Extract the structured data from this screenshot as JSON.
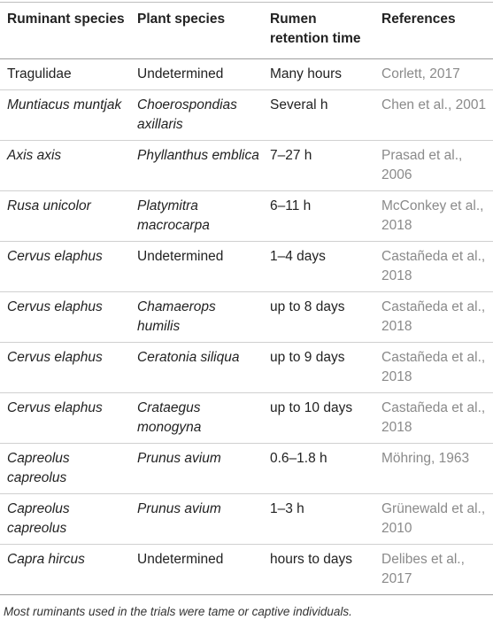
{
  "table": {
    "headers": {
      "ruminant": "Ruminant species",
      "plant": "Plant species",
      "rumen": "Rumen retention time",
      "references": "References"
    },
    "rows": [
      {
        "ruminant": "Tragulidae",
        "ruminant_italic": false,
        "plant": "Undetermined",
        "plant_italic": false,
        "time": "Many hours",
        "ref": "Corlett, 2017"
      },
      {
        "ruminant": "Muntiacus muntjak",
        "ruminant_italic": true,
        "plant": "Choerospondias axillaris",
        "plant_italic": true,
        "time": "Several h",
        "ref": "Chen et al., 2001"
      },
      {
        "ruminant": "Axis axis",
        "ruminant_italic": true,
        "plant": "Phyllanthus emblica",
        "plant_italic": true,
        "time": "7–27 h",
        "ref": "Prasad et al., 2006"
      },
      {
        "ruminant": "Rusa unicolor",
        "ruminant_italic": true,
        "plant": "Platymitra macrocarpa",
        "plant_italic": true,
        "time": "6–11 h",
        "ref": "McConkey et al., 2018"
      },
      {
        "ruminant": "Cervus elaphus",
        "ruminant_italic": true,
        "plant": "Undetermined",
        "plant_italic": false,
        "time": "1–4 days",
        "ref": "Castañeda et al., 2018"
      },
      {
        "ruminant": "Cervus elaphus",
        "ruminant_italic": true,
        "plant": "Chamaerops humilis",
        "plant_italic": true,
        "time": "up to 8 days",
        "ref": "Castañeda et al., 2018"
      },
      {
        "ruminant": "Cervus elaphus",
        "ruminant_italic": true,
        "plant": "Ceratonia siliqua",
        "plant_italic": true,
        "time": "up to 9 days",
        "ref": "Castañeda et al., 2018"
      },
      {
        "ruminant": "Cervus elaphus",
        "ruminant_italic": true,
        "plant": "Crataegus monogyna",
        "plant_italic": true,
        "time": "up to 10 days",
        "ref": "Castañeda et al., 2018"
      },
      {
        "ruminant": "Capreolus capreolus",
        "ruminant_italic": true,
        "plant": "Prunus avium",
        "plant_italic": true,
        "time": "0.6–1.8 h",
        "ref": "Möhring, 1963"
      },
      {
        "ruminant": "Capreolus capreolus",
        "ruminant_italic": true,
        "plant": "Prunus avium",
        "plant_italic": true,
        "time": "1–3 h",
        "ref": "Grünewald et al., 2010"
      },
      {
        "ruminant": "Capra hircus",
        "ruminant_italic": true,
        "plant": "Undetermined",
        "plant_italic": false,
        "time": "hours to days",
        "ref": "Delibes et al., 2017"
      }
    ]
  },
  "footnote": "Most ruminants used in the trials were tame or captive individuals.",
  "colors": {
    "text": "#222222",
    "reference_text": "#8a8a8a",
    "rule": "#9e9e9e"
  }
}
